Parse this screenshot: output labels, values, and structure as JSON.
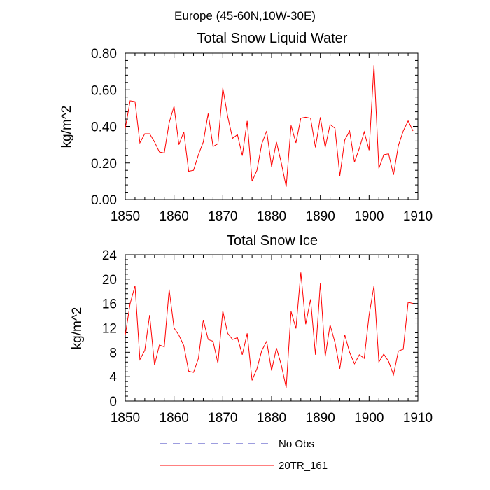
{
  "figure": {
    "suptitle": "Europe (45-60N,10W-30E)"
  },
  "legend": {
    "items": [
      {
        "label": "No Obs",
        "color": "#3b3bbf",
        "style": "dashed"
      },
      {
        "label": "20TR_161",
        "color": "#ff0000",
        "style": "solid"
      }
    ]
  },
  "chart_data": [
    {
      "type": "line",
      "title": "Total Snow Liquid Water",
      "xlabel": "",
      "ylabel": "kg/m^2",
      "xlim": [
        1850,
        1910
      ],
      "ylim": [
        0,
        0.8
      ],
      "xticks": [
        1850,
        1860,
        1870,
        1880,
        1890,
        1900,
        1910
      ],
      "xtick_labels": [
        "1850",
        "1860",
        "1870",
        "1880",
        "1890",
        "1900",
        "1910"
      ],
      "yticks": [
        0,
        0.2,
        0.4,
        0.6,
        0.8
      ],
      "ytick_labels": [
        "0.00",
        "0.20",
        "0.40",
        "0.60",
        "0.80"
      ],
      "x_start": 1850,
      "series": [
        {
          "name": "20TR_161",
          "color": "#ff0000",
          "values": [
            0.39,
            0.54,
            0.535,
            0.31,
            0.36,
            0.36,
            0.315,
            0.26,
            0.255,
            0.42,
            0.51,
            0.3,
            0.37,
            0.155,
            0.16,
            0.245,
            0.315,
            0.47,
            0.29,
            0.305,
            0.61,
            0.455,
            0.335,
            0.355,
            0.24,
            0.43,
            0.1,
            0.16,
            0.305,
            0.375,
            0.18,
            0.315,
            0.2,
            0.07,
            0.405,
            0.31,
            0.445,
            0.45,
            0.445,
            0.285,
            0.45,
            0.285,
            0.41,
            0.39,
            0.13,
            0.325,
            0.375,
            0.205,
            0.28,
            0.37,
            0.27,
            0.735,
            0.17,
            0.245,
            0.25,
            0.135,
            0.295,
            0.375,
            0.43,
            0.375
          ]
        }
      ]
    },
    {
      "type": "line",
      "title": "Total Snow Ice",
      "xlabel": "",
      "ylabel": "kg/m^2",
      "xlim": [
        1850,
        1910
      ],
      "ylim": [
        0,
        24
      ],
      "xticks": [
        1850,
        1860,
        1870,
        1880,
        1890,
        1900,
        1910
      ],
      "xtick_labels": [
        "1850",
        "1860",
        "1870",
        "1880",
        "1890",
        "1900",
        "1910"
      ],
      "yticks": [
        0,
        4,
        8,
        12,
        16,
        20,
        24
      ],
      "ytick_labels": [
        "0",
        "4",
        "8",
        "12",
        "16",
        "20",
        "24"
      ],
      "x_start": 1850,
      "series": [
        {
          "name": "20TR_161",
          "color": "#ff0000",
          "values": [
            10.8,
            16.0,
            18.9,
            6.8,
            8.3,
            14.1,
            5.9,
            9.2,
            8.9,
            18.3,
            12.0,
            10.8,
            9.1,
            4.9,
            4.7,
            7.0,
            13.3,
            10.1,
            9.8,
            6.2,
            14.8,
            11.1,
            10.1,
            10.4,
            7.6,
            11.1,
            3.4,
            5.3,
            8.3,
            9.8,
            5.0,
            8.7,
            5.9,
            2.2,
            14.7,
            11.9,
            21.1,
            12.6,
            16.7,
            7.6,
            19.3,
            7.3,
            12.5,
            9.6,
            5.3,
            10.9,
            8.0,
            6.1,
            7.6,
            7.0,
            14.1,
            18.9,
            6.4,
            7.7,
            6.5,
            4.3,
            8.2,
            8.5,
            16.2,
            16.0
          ]
        }
      ]
    }
  ]
}
